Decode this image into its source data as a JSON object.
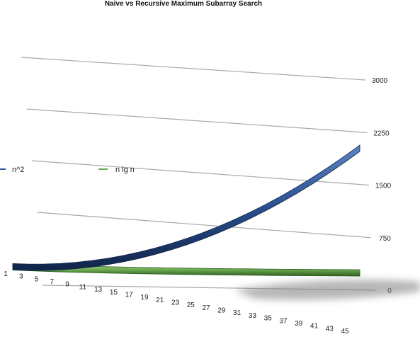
{
  "chart_data": {
    "type": "line",
    "title": "Naive vs Recursive Maximum Subarray Search",
    "x": [
      1,
      3,
      5,
      7,
      9,
      11,
      13,
      15,
      17,
      19,
      21,
      23,
      25,
      27,
      29,
      31,
      33,
      35,
      37,
      39,
      41,
      43,
      45
    ],
    "series": [
      {
        "name": "n^2",
        "color": "#2f5597",
        "values": [
          1,
          9,
          25,
          49,
          81,
          121,
          169,
          225,
          289,
          361,
          441,
          529,
          625,
          729,
          841,
          961,
          1089,
          1225,
          1369,
          1521,
          1681,
          1849,
          2025
        ]
      },
      {
        "name": "n lg n",
        "color": "#6aa84f",
        "values": [
          0,
          5,
          12,
          20,
          29,
          38,
          48,
          59,
          69,
          81,
          92,
          104,
          116,
          128,
          141,
          154,
          166,
          179,
          193,
          206,
          220,
          234,
          247
        ]
      }
    ],
    "y_ticks": [
      "0",
      "750",
      "1500",
      "2250",
      "3000"
    ],
    "ylim": [
      0,
      3000
    ],
    "legend_position": "top-left",
    "grid": true,
    "view": "3d"
  }
}
